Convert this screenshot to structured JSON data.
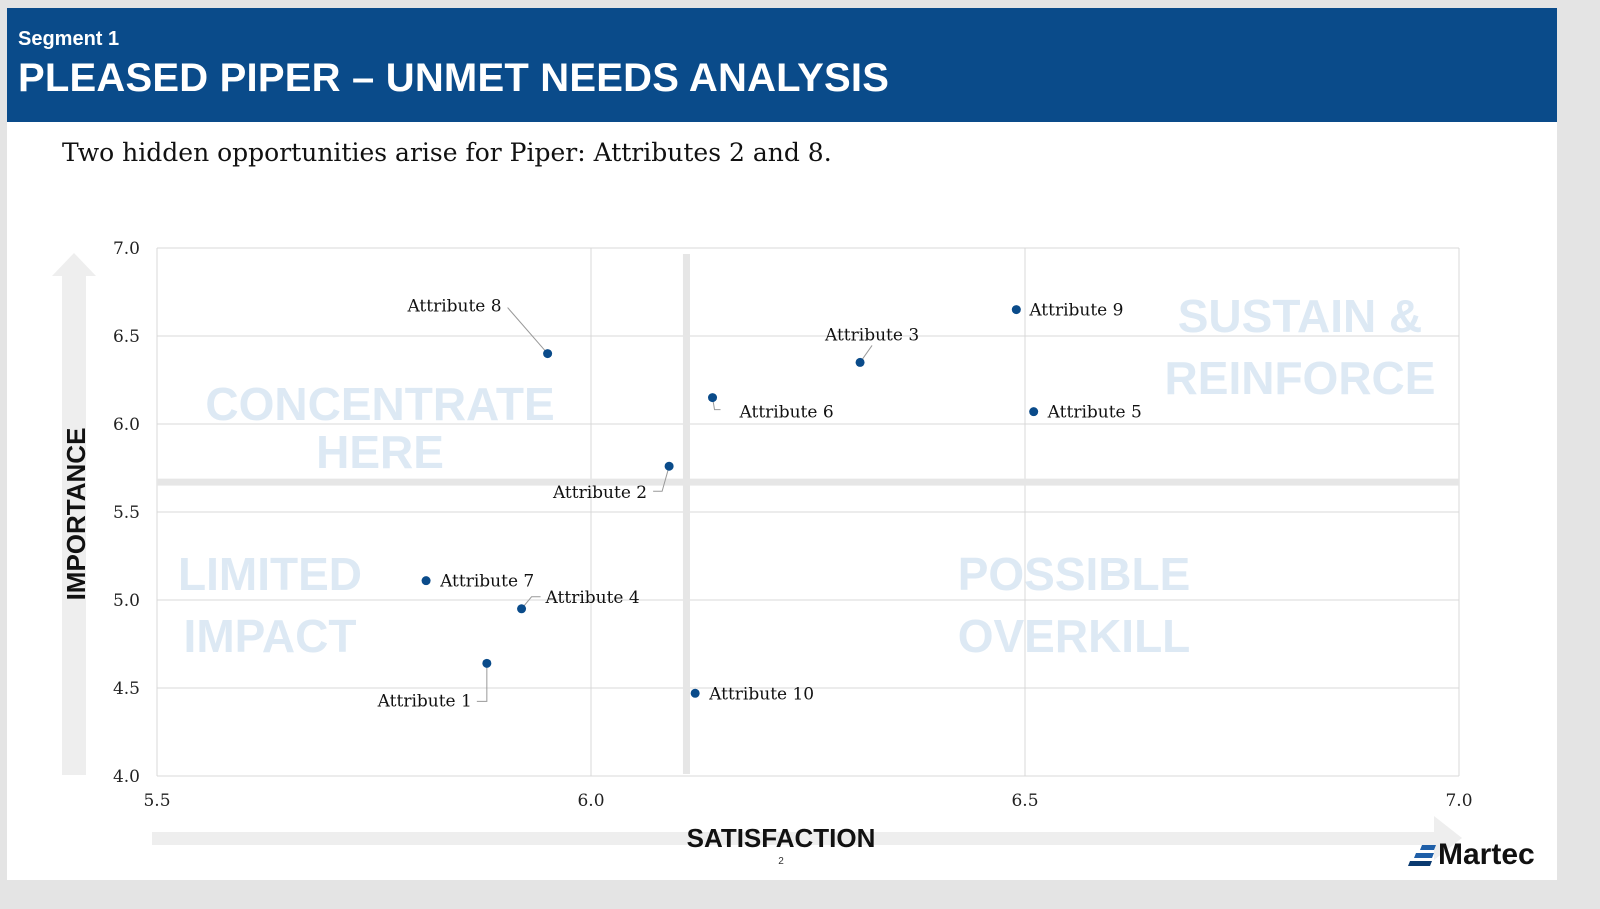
{
  "header": {
    "segment": "Segment 1",
    "title": "PLEASED PIPER – UNMET NEEDS ANALYSIS"
  },
  "subtitle": "Two hidden opportunities arise for Piper: Attributes 2 and 8.",
  "page_number": "2",
  "logo": "Martec",
  "colors": {
    "banner": "#0a4b8a",
    "point": "#0a4b8a",
    "quadrant_text": "#dde9f4",
    "divider": "#e6e6e6"
  },
  "chart_data": {
    "type": "scatter",
    "xlabel": "SATISFACTION",
    "ylabel": "IMPORTANCE",
    "xlim": [
      5.5,
      7.0
    ],
    "ylim": [
      4.0,
      7.0
    ],
    "xticks": [
      "5.5",
      "6.0",
      "6.5",
      "7.0"
    ],
    "yticks": [
      "4.0",
      "4.5",
      "5.0",
      "5.5",
      "6.0",
      "6.5",
      "7.0"
    ],
    "grid": true,
    "quadrant_dividers": {
      "x": 6.11,
      "y": 5.67
    },
    "quadrants": [
      {
        "name": "top-left",
        "lines": [
          "CONCENTRATE",
          "HERE"
        ]
      },
      {
        "name": "top-right",
        "lines": [
          "SUSTAIN &",
          "REINFORCE"
        ]
      },
      {
        "name": "bottom-left",
        "lines": [
          "LIMITED",
          "IMPACT"
        ]
      },
      {
        "name": "bottom-right",
        "lines": [
          "POSSIBLE",
          "OVERKILL"
        ]
      }
    ],
    "points": [
      {
        "label": "Attribute 1",
        "x": 5.88,
        "y": 4.64
      },
      {
        "label": "Attribute 2",
        "x": 6.09,
        "y": 5.76
      },
      {
        "label": "Attribute 3",
        "x": 6.31,
        "y": 6.35
      },
      {
        "label": "Attribute 4",
        "x": 5.92,
        "y": 4.95
      },
      {
        "label": "Attribute 5",
        "x": 6.51,
        "y": 6.07
      },
      {
        "label": "Attribute 6",
        "x": 6.14,
        "y": 6.15
      },
      {
        "label": "Attribute 7",
        "x": 5.81,
        "y": 5.11
      },
      {
        "label": "Attribute 8",
        "x": 5.95,
        "y": 6.4
      },
      {
        "label": "Attribute 9",
        "x": 6.49,
        "y": 6.65
      },
      {
        "label": "Attribute 10",
        "x": 6.12,
        "y": 4.47
      }
    ]
  }
}
